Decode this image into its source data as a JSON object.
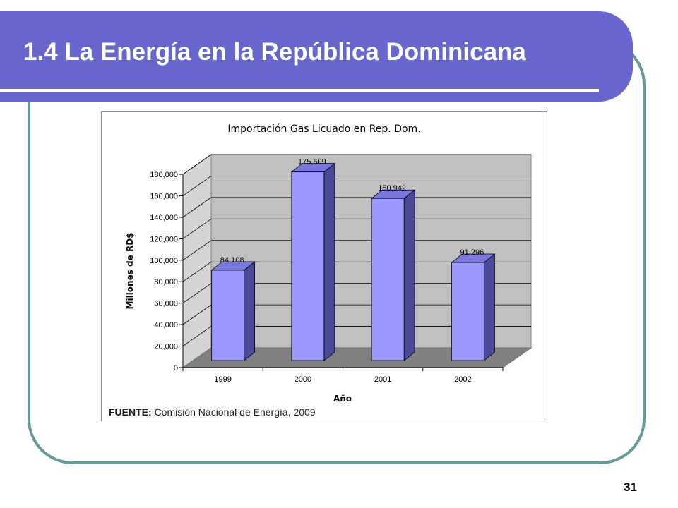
{
  "slide": {
    "title": "1.4 La Energía en la República Dominicana",
    "page_number": "31",
    "colors": {
      "banner": "#6666CC",
      "frame": "#669999",
      "bar": "#9999FF"
    }
  },
  "source": {
    "label": "FUENTE:",
    "text": "Comisión Nacional de Energía, 2009"
  },
  "chart_data": {
    "type": "bar",
    "title": "Importación Gas Licuado en Rep. Dom.",
    "xlabel": "Año",
    "ylabel": "Millones de RD$",
    "categories": [
      "1999",
      "2000",
      "2001",
      "2002"
    ],
    "values": [
      84108,
      175609,
      150942,
      91296
    ],
    "value_labels": [
      "84,108",
      "175,609",
      "150,942",
      "91,296"
    ],
    "ylim": [
      0,
      180000
    ],
    "yticks": [
      0,
      20000,
      40000,
      60000,
      80000,
      100000,
      120000,
      140000,
      160000,
      180000
    ],
    "ytick_labels": [
      "0",
      "20,000",
      "40,000",
      "60,000",
      "80,000",
      "100,000",
      "120,000",
      "140,000",
      "160,000",
      "180,000"
    ],
    "grid": true,
    "style": "3d-column"
  }
}
